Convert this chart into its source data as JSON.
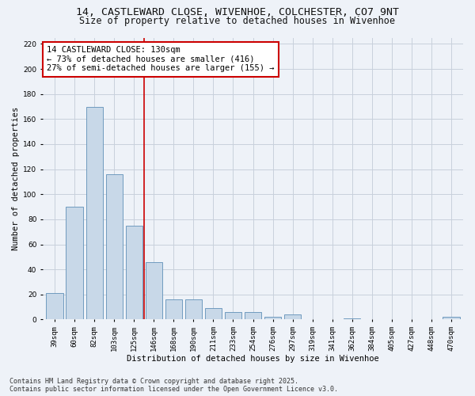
{
  "title_line1": "14, CASTLEWARD CLOSE, WIVENHOE, COLCHESTER, CO7 9NT",
  "title_line2": "Size of property relative to detached houses in Wivenhoe",
  "xlabel": "Distribution of detached houses by size in Wivenhoe",
  "ylabel": "Number of detached properties",
  "categories": [
    "39sqm",
    "60sqm",
    "82sqm",
    "103sqm",
    "125sqm",
    "146sqm",
    "168sqm",
    "190sqm",
    "211sqm",
    "233sqm",
    "254sqm",
    "276sqm",
    "297sqm",
    "319sqm",
    "341sqm",
    "362sqm",
    "384sqm",
    "405sqm",
    "427sqm",
    "448sqm",
    "470sqm"
  ],
  "values": [
    21,
    90,
    170,
    116,
    75,
    46,
    16,
    16,
    9,
    6,
    6,
    2,
    4,
    0,
    0,
    1,
    0,
    0,
    0,
    0,
    2
  ],
  "bar_color": "#c8d8e8",
  "bar_edge_color": "#6090b8",
  "red_line_x": 4.5,
  "annotation_line1": "14 CASTLEWARD CLOSE: 130sqm",
  "annotation_line2": "← 73% of detached houses are smaller (416)",
  "annotation_line3": "27% of semi-detached houses are larger (155) →",
  "annotation_box_color": "#ffffff",
  "annotation_box_edge": "#cc0000",
  "red_line_color": "#cc0000",
  "ylim": [
    0,
    225
  ],
  "yticks": [
    0,
    20,
    40,
    60,
    80,
    100,
    120,
    140,
    160,
    180,
    200,
    220
  ],
  "grid_color": "#c8d0dc",
  "footer_line1": "Contains HM Land Registry data © Crown copyright and database right 2025.",
  "footer_line2": "Contains public sector information licensed under the Open Government Licence v3.0.",
  "bg_color": "#eef2f8",
  "title1_fontsize": 9.5,
  "title2_fontsize": 8.5,
  "axis_label_fontsize": 7.5,
  "tick_fontsize": 6.5,
  "annotation_fontsize": 7.5,
  "footer_fontsize": 6.0
}
